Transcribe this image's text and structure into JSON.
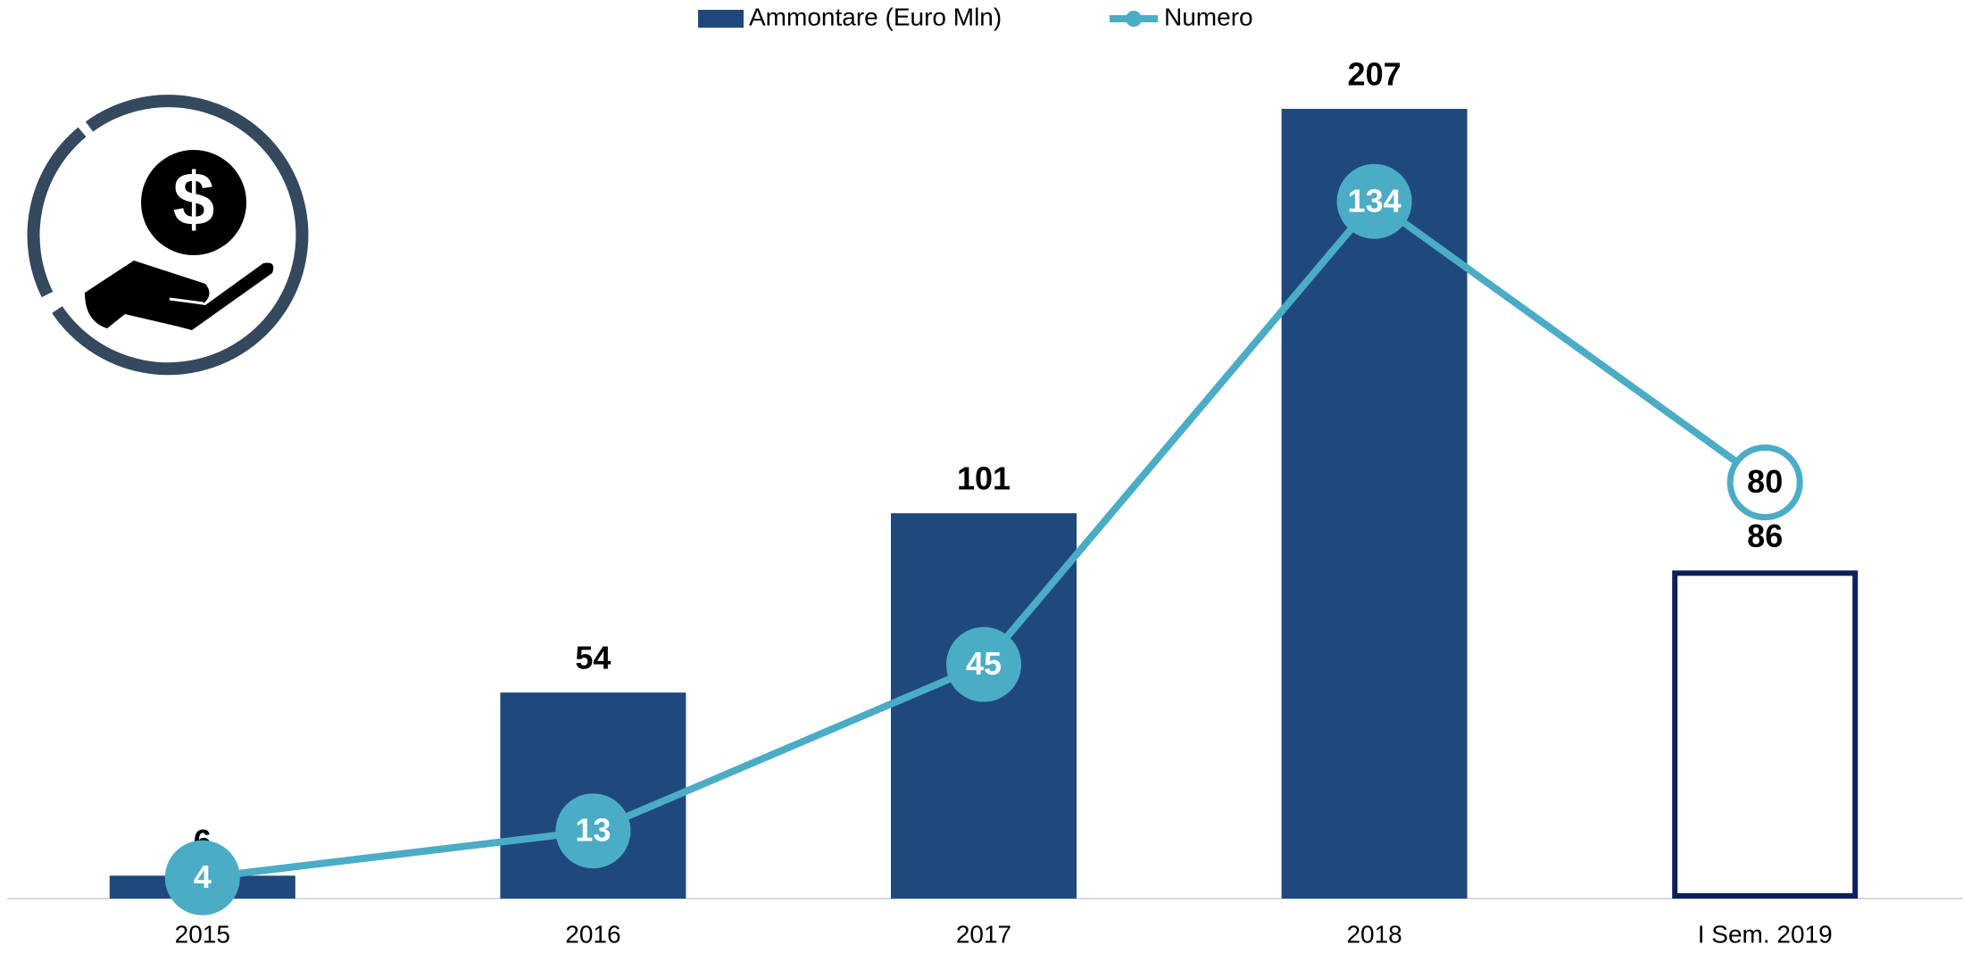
{
  "chart_data": {
    "type": "bar",
    "categories": [
      "2015",
      "2016",
      "2017",
      "2018",
      "I Sem. 2019"
    ],
    "series": [
      {
        "name": "Ammontare (Euro Mln)",
        "type": "bar",
        "color": "#1f497d",
        "outline_color": "#0d1f5c",
        "hollow": [
          false,
          false,
          false,
          false,
          true
        ],
        "values": [
          6,
          54,
          101,
          207,
          86
        ]
      },
      {
        "name": "Numero",
        "type": "line",
        "axis": "y2",
        "color": "#4bacc6",
        "hollow": [
          false,
          false,
          false,
          false,
          true
        ],
        "values": [
          4,
          13,
          45,
          134,
          80
        ]
      }
    ],
    "ylim": [
      0,
      225
    ],
    "y2lim": [
      0,
      165
    ],
    "grid": false,
    "legend": "top"
  }
}
